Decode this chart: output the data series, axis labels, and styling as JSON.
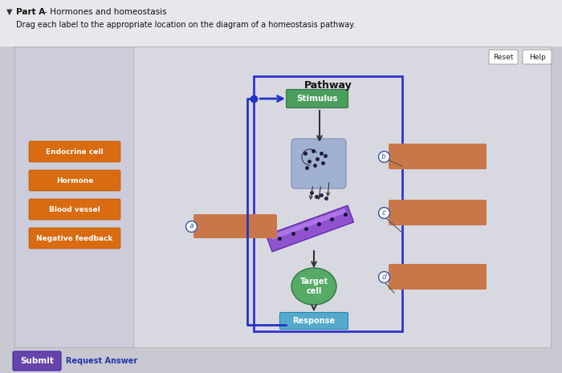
{
  "page_bg": "#c8c8d0",
  "header_bg": "#e8e8ec",
  "main_box_bg": "#d8d8e0",
  "left_panel_bg": "#ccccda",
  "title_text": "Part A - Hormones and homeostasis",
  "subtitle_text": "Drag each label to the appropriate location on the diagram of a homeostasis pathway.",
  "orange_labels": [
    "Endocrine cell",
    "Hormone",
    "Blood vessel",
    "Negative feedback"
  ],
  "orange_color": "#d96b10",
  "pathway_title": "Pathway",
  "stimulus_text": "Stimulus",
  "stimulus_bg": "#4a9e5c",
  "response_text": "Response",
  "response_bg": "#55aacc",
  "target_cell_text": "Target\ncell",
  "target_cell_bg": "#55aa66",
  "blank_box_color": "#c87848",
  "reset_text": "Reset",
  "help_text": "Help",
  "submit_text": "Submit",
  "submit_bg": "#6644aa",
  "request_answer_text": "Request Answer",
  "blue_line_color": "#2233cc",
  "pathway_border": "#3333cc",
  "arrow_color": "#333333",
  "endo_cell_color": "#a0b0d0",
  "blood_vessel_color": "#8844cc",
  "label_circle_color": "#3355aa",
  "label_circle_bg": "#ffffff"
}
